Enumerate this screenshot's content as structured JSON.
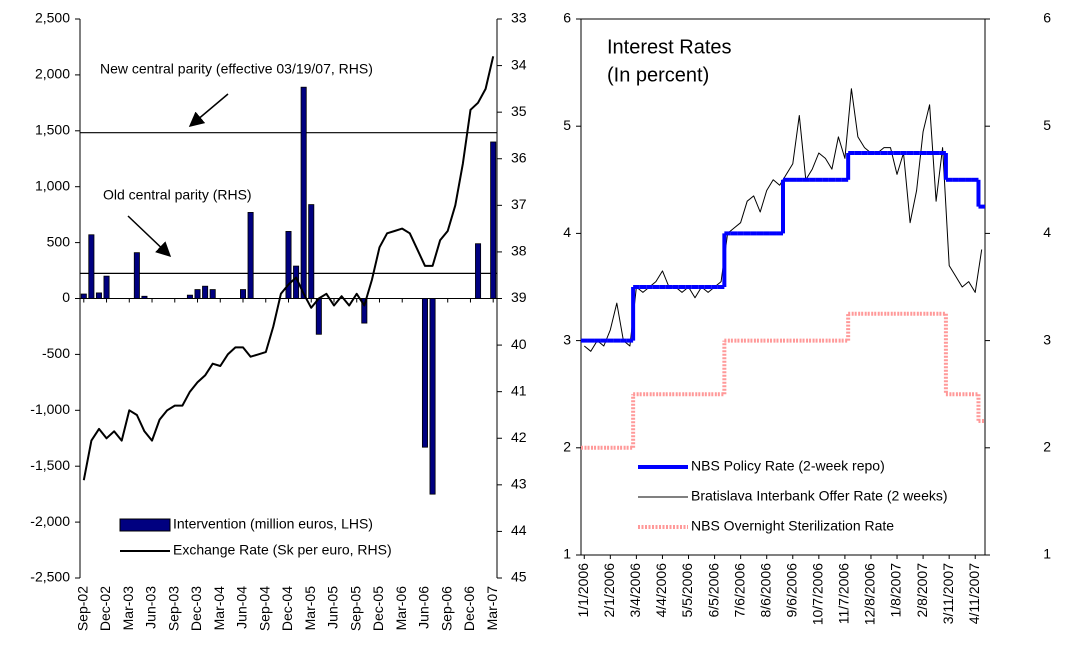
{
  "chart_data": [
    {
      "type": "combo",
      "categories": [
        "Sep-02",
        null,
        null,
        "Dec-02",
        null,
        null,
        "Mar-03",
        null,
        null,
        "Jun-03",
        null,
        null,
        "Sep-03",
        null,
        null,
        "Dec-03",
        null,
        null,
        "Mar-04",
        null,
        null,
        "Jun-04",
        null,
        null,
        "Sep-04",
        null,
        null,
        "Dec-04",
        null,
        null,
        "Mar-05",
        null,
        null,
        "Jun-05",
        null,
        null,
        "Sep-05",
        null,
        null,
        "Dec-05",
        null,
        null,
        "Mar-06",
        null,
        null,
        "Jun-06",
        null,
        null,
        "Sep-06",
        null,
        null,
        "Dec-06",
        null,
        null,
        "Mar-07"
      ],
      "series": [
        {
          "name": "Intervention (million euros, LHS)",
          "type": "bar",
          "color": "#000080",
          "values": [
            40,
            570,
            50,
            200,
            0,
            0,
            0,
            410,
            20,
            0,
            0,
            0,
            0,
            0,
            30,
            80,
            110,
            80,
            0,
            0,
            0,
            80,
            770,
            0,
            0,
            0,
            0,
            600,
            290,
            1890,
            840,
            -320,
            0,
            0,
            0,
            0,
            0,
            -220,
            0,
            0,
            0,
            0,
            0,
            0,
            0,
            -1330,
            -1750,
            0,
            0,
            0,
            0,
            0,
            490,
            0,
            1400
          ]
        },
        {
          "name": "Exchange Rate (Sk per euro, RHS)",
          "type": "line",
          "axis": "y2",
          "color": "#000000",
          "values": [
            42.9,
            42.05,
            41.8,
            42.0,
            41.85,
            42.05,
            41.4,
            41.5,
            41.85,
            42.05,
            41.6,
            41.4,
            41.3,
            41.3,
            41.0,
            40.8,
            40.65,
            40.4,
            40.45,
            40.2,
            40.05,
            40.05,
            40.25,
            40.2,
            40.15,
            39.6,
            38.9,
            38.7,
            38.55,
            38.9,
            39.2,
            39.0,
            38.9,
            39.15,
            38.95,
            39.15,
            38.9,
            39.15,
            38.6,
            37.9,
            37.6,
            37.55,
            37.5,
            37.6,
            37.95,
            38.3,
            38.3,
            37.75,
            37.55,
            37.0,
            36.1,
            34.95,
            34.8,
            34.5,
            33.8
          ]
        }
      ],
      "ylim": [
        -2500,
        2500
      ],
      "yticks": [
        {
          "value": -2500,
          "label": "-2,500"
        },
        {
          "value": -2000,
          "label": "-2,000"
        },
        {
          "value": -1500,
          "label": "-1,500"
        },
        {
          "value": -1000,
          "label": "-1,000"
        },
        -500,
        0,
        500,
        {
          "value": 1000,
          "label": "1,000"
        },
        {
          "value": 1500,
          "label": "1,500"
        },
        {
          "value": 2000,
          "label": "2,000"
        },
        {
          "value": 2500,
          "label": "2,500"
        }
      ],
      "y2lim": [
        33,
        45
      ],
      "y2_inverted": true,
      "y2ticks": [
        33,
        34,
        35,
        36,
        37,
        38,
        39,
        40,
        41,
        42,
        43,
        44,
        45
      ],
      "reference_lines": [
        {
          "value": 35.44,
          "axis": "y2",
          "label": "New central parity (effective 03/19/07, RHS)"
        },
        {
          "value": 38.46,
          "axis": "y2",
          "label": "Old central parity (RHS)"
        }
      ]
    },
    {
      "type": "line",
      "title": "Interest Rates",
      "subtitle": "(In percent)",
      "categories": [
        "1/1/2006",
        null,
        null,
        null,
        "2/1/2006",
        null,
        null,
        null,
        "3/4/2006",
        null,
        null,
        null,
        "4/4/2006",
        null,
        null,
        null,
        "5/5/2006",
        null,
        null,
        null,
        "6/5/2006",
        null,
        null,
        null,
        "7/6/2006",
        null,
        null,
        null,
        "8/6/2006",
        null,
        null,
        null,
        "9/6/2006",
        null,
        null,
        null,
        "10/7/2006",
        null,
        null,
        null,
        "11/7/2006",
        null,
        null,
        null,
        "12/8/2006",
        null,
        null,
        null,
        "1/8/2007",
        null,
        null,
        null,
        "2/8/2007",
        null,
        null,
        null,
        "3/11/2007",
        null,
        null,
        null,
        "4/11/2007",
        null
      ],
      "series": [
        {
          "name": "NBS Policy Rate (2-week repo)",
          "color": "#0000ff",
          "step": true,
          "width": 4,
          "values": [
            3.0,
            3.0,
            3.0,
            3.0,
            3.0,
            3.0,
            3.0,
            3.0,
            3.5,
            3.5,
            3.5,
            3.5,
            3.5,
            3.5,
            3.5,
            3.5,
            3.5,
            3.5,
            3.5,
            3.5,
            3.5,
            3.5,
            4.0,
            4.0,
            4.0,
            4.0,
            4.0,
            4.0,
            4.0,
            4.0,
            4.0,
            4.5,
            4.5,
            4.5,
            4.5,
            4.5,
            4.5,
            4.5,
            4.5,
            4.5,
            4.5,
            4.75,
            4.75,
            4.75,
            4.75,
            4.75,
            4.75,
            4.75,
            4.75,
            4.75,
            4.75,
            4.75,
            4.75,
            4.75,
            4.75,
            4.75,
            4.5,
            4.5,
            4.5,
            4.5,
            4.5,
            4.25
          ]
        },
        {
          "name": "Bratislava Interbank Offer Rate (2 weeks)",
          "color": "#000000",
          "width": 1,
          "values": [
            2.95,
            2.9,
            3.0,
            2.95,
            3.1,
            3.35,
            3.0,
            2.95,
            3.5,
            3.45,
            3.5,
            3.55,
            3.65,
            3.5,
            3.5,
            3.45,
            3.5,
            3.4,
            3.5,
            3.45,
            3.5,
            3.55,
            4.0,
            4.05,
            4.1,
            4.3,
            4.35,
            4.2,
            4.4,
            4.5,
            4.45,
            4.55,
            4.65,
            5.1,
            4.5,
            4.6,
            4.75,
            4.7,
            4.6,
            4.9,
            4.7,
            5.35,
            4.9,
            4.8,
            4.75,
            4.75,
            4.8,
            4.8,
            4.55,
            4.75,
            4.1,
            4.4,
            4.95,
            5.2,
            4.3,
            4.8,
            3.7,
            3.6,
            3.5,
            3.55,
            3.45,
            3.85
          ]
        },
        {
          "name": "NBS Overnight Sterilization Rate",
          "color": "#ff9999",
          "step": true,
          "dashed": true,
          "width": 4,
          "values": [
            2.0,
            2.0,
            2.0,
            2.0,
            2.0,
            2.0,
            2.0,
            2.0,
            2.5,
            2.5,
            2.5,
            2.5,
            2.5,
            2.5,
            2.5,
            2.5,
            2.5,
            2.5,
            2.5,
            2.5,
            2.5,
            2.5,
            3.0,
            3.0,
            3.0,
            3.0,
            3.0,
            3.0,
            3.0,
            3.0,
            3.0,
            3.0,
            3.0,
            3.0,
            3.0,
            3.0,
            3.0,
            3.0,
            3.0,
            3.0,
            3.0,
            3.25,
            3.25,
            3.25,
            3.25,
            3.25,
            3.25,
            3.25,
            3.25,
            3.25,
            3.25,
            3.25,
            3.25,
            3.25,
            3.25,
            3.25,
            2.5,
            2.5,
            2.5,
            2.5,
            2.5,
            2.25
          ]
        }
      ],
      "ylim": [
        1,
        6
      ],
      "yticks": [
        1,
        2,
        3,
        4,
        5,
        6
      ],
      "y2lim": [
        1,
        6
      ],
      "y2ticks": [
        1,
        2,
        3,
        4,
        5,
        6
      ]
    }
  ]
}
